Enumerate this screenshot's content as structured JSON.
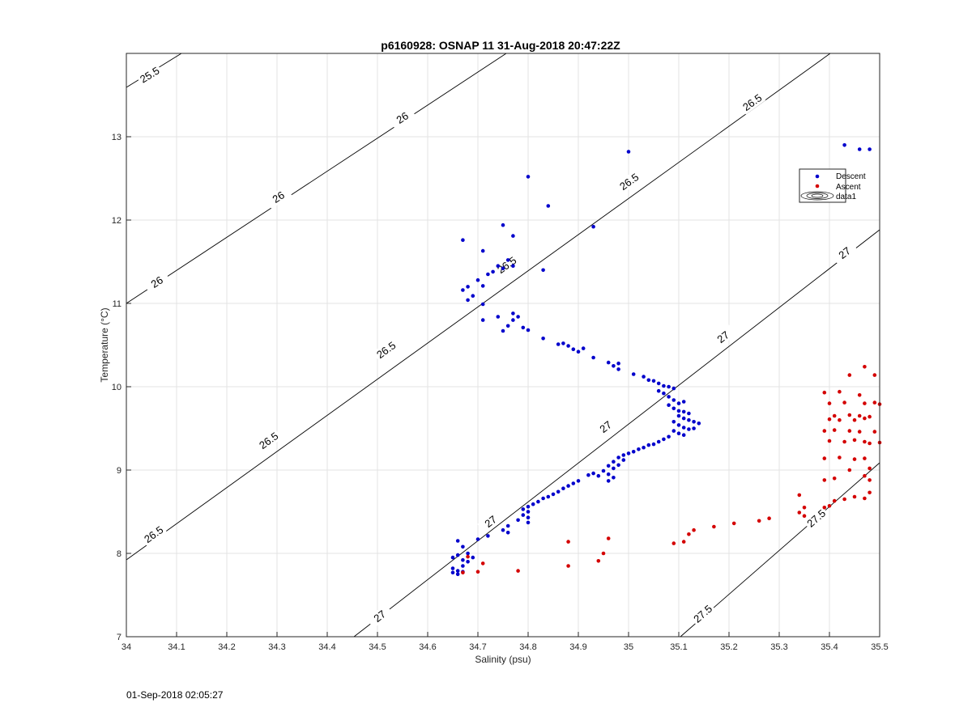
{
  "chart_data": {
    "type": "scatter",
    "title": "p6160928: OSNAP 11 31-Aug-2018 20:47:22Z",
    "xlabel": "Salinity (psu)",
    "ylabel": "Temperature (°C)",
    "xlim": [
      34,
      35.5
    ],
    "ylim": [
      7,
      14
    ],
    "xticks": [
      "34",
      "34.1",
      "34.2",
      "34.3",
      "34.4",
      "34.5",
      "34.6",
      "34.7",
      "34.8",
      "34.9",
      "35",
      "35.1",
      "35.2",
      "35.3",
      "35.4",
      "35.5"
    ],
    "yticks": [
      "7",
      "8",
      "9",
      "10",
      "11",
      "12",
      "13"
    ],
    "grid": true,
    "legend_placement": "upper-right",
    "legend": [
      "Descent",
      "Ascent",
      "data1"
    ],
    "colors": {
      "descent": "#0000cc",
      "ascent": "#d40000",
      "contour": "#000000",
      "grid": "#e3e3e3"
    },
    "contours": [
      {
        "level": 25.5,
        "labels": [
          "25.5"
        ]
      },
      {
        "level": 26,
        "labels": [
          "26",
          "26",
          "26"
        ]
      },
      {
        "level": 26.5,
        "labels": [
          "26.5",
          "26.5",
          "26.5",
          "26.5",
          "26.5",
          "26.5"
        ]
      },
      {
        "level": 27,
        "labels": [
          "27",
          "27",
          "27",
          "27",
          "27"
        ]
      },
      {
        "level": 27.5,
        "labels": [
          "27.5",
          "27.5"
        ]
      }
    ],
    "series": [
      {
        "name": "Descent",
        "points": [
          [
            35.43,
            12.9
          ],
          [
            35.46,
            12.85
          ],
          [
            35.48,
            12.85
          ],
          [
            35.0,
            12.82
          ],
          [
            34.8,
            12.52
          ],
          [
            34.84,
            12.17
          ],
          [
            34.75,
            11.94
          ],
          [
            34.93,
            11.92
          ],
          [
            34.67,
            11.76
          ],
          [
            34.77,
            11.81
          ],
          [
            34.71,
            11.63
          ],
          [
            34.76,
            11.52
          ],
          [
            34.74,
            11.45
          ],
          [
            34.77,
            11.45
          ],
          [
            34.83,
            11.4
          ],
          [
            34.72,
            11.35
          ],
          [
            34.73,
            11.38
          ],
          [
            34.75,
            11.42
          ],
          [
            34.7,
            11.28
          ],
          [
            34.71,
            11.21
          ],
          [
            34.68,
            11.2
          ],
          [
            34.67,
            11.16
          ],
          [
            34.69,
            11.09
          ],
          [
            34.68,
            11.04
          ],
          [
            34.71,
            10.99
          ],
          [
            34.77,
            10.88
          ],
          [
            34.78,
            10.84
          ],
          [
            34.77,
            10.8
          ],
          [
            34.74,
            10.84
          ],
          [
            34.71,
            10.8
          ],
          [
            34.76,
            10.73
          ],
          [
            34.79,
            10.71
          ],
          [
            34.75,
            10.67
          ],
          [
            34.8,
            10.68
          ],
          [
            34.83,
            10.58
          ],
          [
            34.86,
            10.51
          ],
          [
            34.87,
            10.52
          ],
          [
            34.88,
            10.49
          ],
          [
            34.89,
            10.45
          ],
          [
            34.9,
            10.42
          ],
          [
            34.91,
            10.46
          ],
          [
            34.93,
            10.35
          ],
          [
            34.96,
            10.29
          ],
          [
            34.97,
            10.25
          ],
          [
            34.98,
            10.28
          ],
          [
            34.98,
            10.21
          ],
          [
            35.01,
            10.15
          ],
          [
            35.03,
            10.12
          ],
          [
            35.04,
            10.08
          ],
          [
            35.05,
            10.07
          ],
          [
            35.06,
            10.04
          ],
          [
            35.07,
            10.01
          ],
          [
            35.08,
            10.0
          ],
          [
            35.09,
            9.98
          ],
          [
            35.06,
            9.95
          ],
          [
            35.07,
            9.92
          ],
          [
            35.08,
            9.88
          ],
          [
            35.09,
            9.84
          ],
          [
            35.1,
            9.8
          ],
          [
            35.11,
            9.82
          ],
          [
            35.08,
            9.78
          ],
          [
            35.09,
            9.74
          ],
          [
            35.1,
            9.71
          ],
          [
            35.11,
            9.7
          ],
          [
            35.12,
            9.68
          ],
          [
            35.1,
            9.65
          ],
          [
            35.11,
            9.62
          ],
          [
            35.12,
            9.6
          ],
          [
            35.13,
            9.58
          ],
          [
            35.14,
            9.56
          ],
          [
            35.09,
            9.58
          ],
          [
            35.1,
            9.54
          ],
          [
            35.11,
            9.51
          ],
          [
            35.12,
            9.49
          ],
          [
            35.13,
            9.5
          ],
          [
            35.09,
            9.47
          ],
          [
            35.1,
            9.44
          ],
          [
            35.11,
            9.42
          ],
          [
            35.08,
            9.4
          ],
          [
            35.07,
            9.37
          ],
          [
            35.06,
            9.34
          ],
          [
            35.05,
            9.31
          ],
          [
            35.04,
            9.3
          ],
          [
            35.03,
            9.27
          ],
          [
            35.02,
            9.25
          ],
          [
            35.01,
            9.22
          ],
          [
            35.0,
            9.2
          ],
          [
            34.99,
            9.18
          ],
          [
            34.98,
            9.15
          ],
          [
            34.99,
            9.12
          ],
          [
            34.97,
            9.1
          ],
          [
            34.98,
            9.06
          ],
          [
            34.96,
            9.05
          ],
          [
            34.97,
            9.02
          ],
          [
            34.95,
            8.99
          ],
          [
            34.93,
            8.96
          ],
          [
            34.96,
            8.95
          ],
          [
            34.94,
            8.93
          ],
          [
            34.97,
            8.91
          ],
          [
            34.96,
            8.87
          ],
          [
            34.92,
            8.94
          ],
          [
            34.9,
            8.87
          ],
          [
            34.89,
            8.84
          ],
          [
            34.88,
            8.81
          ],
          [
            34.87,
            8.78
          ],
          [
            34.86,
            8.74
          ],
          [
            34.85,
            8.71
          ],
          [
            34.84,
            8.68
          ],
          [
            34.83,
            8.66
          ],
          [
            34.82,
            8.62
          ],
          [
            34.81,
            8.59
          ],
          [
            34.8,
            8.56
          ],
          [
            34.79,
            8.53
          ],
          [
            34.8,
            8.5
          ],
          [
            34.79,
            8.46
          ],
          [
            34.8,
            8.43
          ],
          [
            34.78,
            8.4
          ],
          [
            34.8,
            8.37
          ],
          [
            34.76,
            8.33
          ],
          [
            34.75,
            8.28
          ],
          [
            34.76,
            8.25
          ],
          [
            34.72,
            8.21
          ],
          [
            34.7,
            8.17
          ],
          [
            34.66,
            8.15
          ],
          [
            34.67,
            8.08
          ],
          [
            34.68,
            8.0
          ],
          [
            34.66,
            7.98
          ],
          [
            34.65,
            7.95
          ],
          [
            34.67,
            7.92
          ],
          [
            34.68,
            7.9
          ],
          [
            34.67,
            7.85
          ],
          [
            34.65,
            7.82
          ],
          [
            34.66,
            7.79
          ],
          [
            34.65,
            7.77
          ],
          [
            34.66,
            7.75
          ],
          [
            34.67,
            7.78
          ],
          [
            34.69,
            7.95
          ]
        ]
      },
      {
        "name": "Ascent",
        "points": [
          [
            35.47,
            10.24
          ],
          [
            35.44,
            10.14
          ],
          [
            35.49,
            10.14
          ],
          [
            35.39,
            9.93
          ],
          [
            35.42,
            9.94
          ],
          [
            35.46,
            9.9
          ],
          [
            35.4,
            9.8
          ],
          [
            35.43,
            9.81
          ],
          [
            35.47,
            9.8
          ],
          [
            35.49,
            9.81
          ],
          [
            35.5,
            9.79
          ],
          [
            35.41,
            9.65
          ],
          [
            35.44,
            9.66
          ],
          [
            35.46,
            9.65
          ],
          [
            35.48,
            9.64
          ],
          [
            35.4,
            9.61
          ],
          [
            35.42,
            9.6
          ],
          [
            35.45,
            9.6
          ],
          [
            35.47,
            9.62
          ],
          [
            35.39,
            9.47
          ],
          [
            35.41,
            9.48
          ],
          [
            35.44,
            9.47
          ],
          [
            35.46,
            9.46
          ],
          [
            35.49,
            9.46
          ],
          [
            35.4,
            9.35
          ],
          [
            35.43,
            9.34
          ],
          [
            35.45,
            9.36
          ],
          [
            35.47,
            9.34
          ],
          [
            35.48,
            9.32
          ],
          [
            35.5,
            9.33
          ],
          [
            35.39,
            9.14
          ],
          [
            35.42,
            9.15
          ],
          [
            35.45,
            9.13
          ],
          [
            35.47,
            9.14
          ],
          [
            35.44,
            9.0
          ],
          [
            35.48,
            9.02
          ],
          [
            35.39,
            8.88
          ],
          [
            35.41,
            8.9
          ],
          [
            35.47,
            8.93
          ],
          [
            35.48,
            8.88
          ],
          [
            35.48,
            8.73
          ],
          [
            35.34,
            8.7
          ],
          [
            35.35,
            8.55
          ],
          [
            35.34,
            8.49
          ],
          [
            35.35,
            8.45
          ],
          [
            35.39,
            8.55
          ],
          [
            35.4,
            8.57
          ],
          [
            35.41,
            8.63
          ],
          [
            35.43,
            8.65
          ],
          [
            35.45,
            8.68
          ],
          [
            35.47,
            8.66
          ],
          [
            35.28,
            8.42
          ],
          [
            35.26,
            8.39
          ],
          [
            35.21,
            8.36
          ],
          [
            35.17,
            8.32
          ],
          [
            35.13,
            8.28
          ],
          [
            35.12,
            8.23
          ],
          [
            35.11,
            8.14
          ],
          [
            35.09,
            8.12
          ],
          [
            34.96,
            8.18
          ],
          [
            34.95,
            8.0
          ],
          [
            34.94,
            7.91
          ],
          [
            34.88,
            8.14
          ],
          [
            34.88,
            7.85
          ],
          [
            34.78,
            7.79
          ],
          [
            34.71,
            7.88
          ],
          [
            34.7,
            7.78
          ],
          [
            34.68,
            7.96
          ],
          [
            34.67,
            7.77
          ]
        ]
      }
    ]
  },
  "footer": "01-Sep-2018 02:05:27"
}
